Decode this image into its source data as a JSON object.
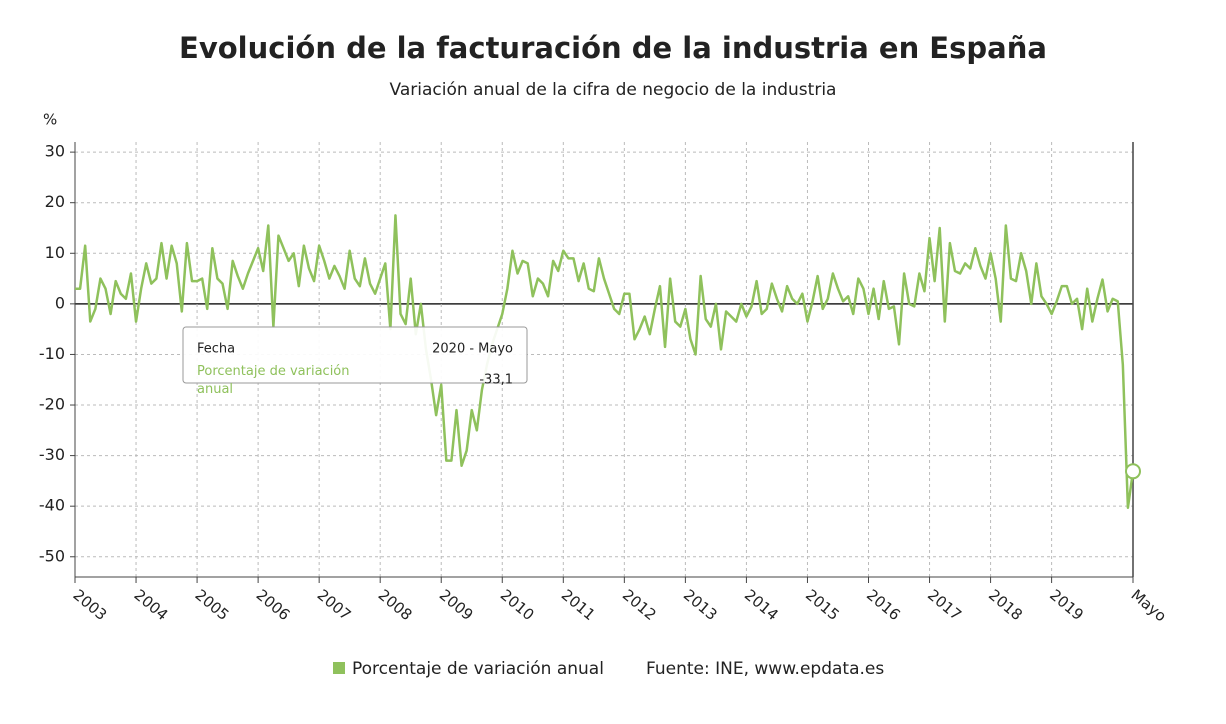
{
  "chart_data": {
    "type": "line",
    "title": "Evolución de la facturación de la industria en España",
    "subtitle": "Variación anual de la cifra de negocio de la industria",
    "y_label": "%",
    "source": "Fuente: INE, www.epdata.es",
    "categories": [
      "2003",
      null,
      null,
      null,
      null,
      null,
      null,
      null,
      null,
      null,
      null,
      null,
      "2004",
      null,
      null,
      null,
      null,
      null,
      null,
      null,
      null,
      null,
      null,
      null,
      "2005",
      null,
      null,
      null,
      null,
      null,
      null,
      null,
      null,
      null,
      null,
      null,
      "2006",
      null,
      null,
      null,
      null,
      null,
      null,
      null,
      null,
      null,
      null,
      null,
      "2007",
      null,
      null,
      null,
      null,
      null,
      null,
      null,
      null,
      null,
      null,
      null,
      "2008",
      null,
      null,
      null,
      null,
      null,
      null,
      null,
      null,
      null,
      null,
      null,
      "2009",
      null,
      null,
      null,
      null,
      null,
      null,
      null,
      null,
      null,
      null,
      null,
      "2010",
      null,
      null,
      null,
      null,
      null,
      null,
      null,
      null,
      null,
      null,
      null,
      "2011",
      null,
      null,
      null,
      null,
      null,
      null,
      null,
      null,
      null,
      null,
      null,
      "2012",
      null,
      null,
      null,
      null,
      null,
      null,
      null,
      null,
      null,
      null,
      null,
      "2013",
      null,
      null,
      null,
      null,
      null,
      null,
      null,
      null,
      null,
      null,
      null,
      "2014",
      null,
      null,
      null,
      null,
      null,
      null,
      null,
      null,
      null,
      null,
      null,
      "2015",
      null,
      null,
      null,
      null,
      null,
      null,
      null,
      null,
      null,
      null,
      null,
      "2016",
      null,
      null,
      null,
      null,
      null,
      null,
      null,
      null,
      null,
      null,
      null,
      "2017",
      null,
      null,
      null,
      null,
      null,
      null,
      null,
      null,
      null,
      null,
      null,
      "2018",
      null,
      null,
      null,
      null,
      null,
      null,
      null,
      null,
      null,
      null,
      null,
      "2019",
      null,
      null,
      null,
      null,
      null,
      null,
      null,
      null,
      null,
      null,
      null,
      null,
      null,
      null,
      null,
      "Mayo"
    ],
    "series": [
      {
        "name": "Porcentaje de variación anual",
        "color": "#8fc15c",
        "values": [
          3,
          3,
          11.5,
          -3.5,
          -1,
          5,
          3,
          -2,
          4.5,
          2,
          1,
          6,
          -3.5,
          3,
          8,
          4,
          5,
          12,
          5,
          11.5,
          8,
          -1.5,
          12,
          4.5,
          4.5,
          5,
          -1,
          11,
          5,
          4,
          -1,
          8.5,
          5.5,
          3,
          6,
          8.5,
          11,
          6.5,
          15.5,
          -4.5,
          13.5,
          11,
          8.5,
          10,
          3.5,
          11.5,
          7,
          4.5,
          11.5,
          8.5,
          5,
          7.5,
          5.5,
          3,
          10.5,
          5,
          3.5,
          9,
          4,
          2,
          5,
          8,
          -5,
          17.5,
          -2,
          -4,
          5,
          -6,
          0,
          -9,
          -15,
          -22,
          -16,
          -31,
          -31,
          -21,
          -32,
          -29,
          -21,
          -25,
          -17,
          -12,
          -8,
          -5,
          -2,
          3,
          10.5,
          6,
          8.5,
          8,
          1.5,
          5,
          4,
          1.5,
          8.5,
          6.5,
          10.5,
          9,
          9,
          4.5,
          8,
          3,
          2.5,
          9,
          5,
          2,
          -1,
          -2,
          2,
          2,
          -7,
          -5,
          -2.5,
          -6,
          -1,
          3.5,
          -8.5,
          5,
          -3.5,
          -4.5,
          -1,
          -7,
          -10,
          5.5,
          -3,
          -4.5,
          0,
          -9,
          -1.5,
          -2.5,
          -3.5,
          0,
          -2.5,
          -0.5,
          4.5,
          -2,
          -1,
          4,
          1,
          -1.5,
          3.5,
          1,
          0,
          2,
          -3.5,
          0.5,
          5.5,
          -1,
          1,
          6,
          3,
          0.5,
          1.5,
          -2,
          5,
          3,
          -2,
          3,
          -3,
          4.5,
          -1,
          -0.5,
          -8,
          6,
          0,
          -0.5,
          6,
          2.5,
          13,
          4.5,
          15,
          -3.5,
          12,
          6.5,
          6,
          8,
          7,
          11,
          7.5,
          5,
          10,
          5,
          -3.5,
          15.5,
          5,
          4.5,
          10,
          6.5,
          0,
          8,
          1.5,
          0,
          -2,
          0.5,
          3.5,
          3.5,
          0,
          1,
          -5,
          3,
          -3.5,
          1,
          4.8,
          -1.5,
          1,
          0.5,
          -12,
          -40.3,
          -33.1
        ]
      }
    ],
    "ylim": [
      -54,
      32
    ],
    "yticks": [
      30,
      20,
      10,
      0,
      -10,
      -20,
      -30,
      -40,
      -50
    ],
    "grid": true,
    "tooltip": {
      "date_title": "Fecha",
      "date": "2020 - Mayo",
      "series_title": "Porcentaje de variación anual",
      "value": -33.1,
      "value_label": "-33,1"
    }
  }
}
